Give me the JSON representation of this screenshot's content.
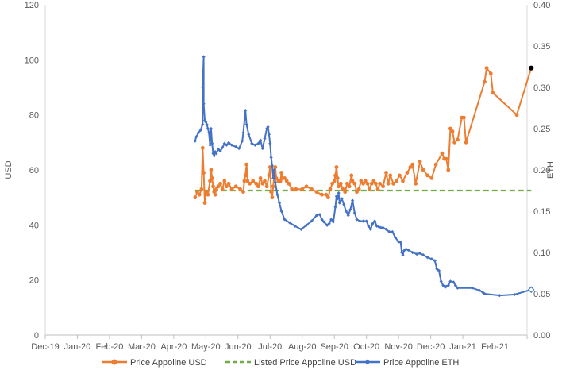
{
  "chart_data": {
    "type": "line",
    "xlabel": "",
    "ylabel_left": "USD",
    "ylabel_right": "ETH",
    "x_ticks": [
      "Dec-19",
      "Jan-20",
      "Feb-20",
      "Mar-20",
      "Apr-20",
      "May-20",
      "Jun-20",
      "Jul-20",
      "Aug-20",
      "Sep-20",
      "Oct-20",
      "Nov-20",
      "Dec-20",
      "Jan-21",
      "Feb-21"
    ],
    "ylim_left": [
      0,
      120
    ],
    "y_ticks_left": [
      0,
      20,
      40,
      60,
      80,
      100,
      120
    ],
    "ylim_right": [
      0,
      0.4
    ],
    "y_ticks_right": [
      "0.00",
      "0.05",
      "0.10",
      "0.15",
      "0.20",
      "0.25",
      "0.30",
      "0.35",
      "0.40"
    ],
    "grid": false,
    "legend_position": "bottom",
    "series": [
      {
        "name": "Price Appoline USD",
        "axis": "left",
        "color": "#ED7D31",
        "style": "solid-with-dots",
        "points": [
          [
            "2020-04-21",
            50
          ],
          [
            "2020-04-23",
            52
          ],
          [
            "2020-04-25",
            51
          ],
          [
            "2020-04-27",
            53
          ],
          [
            "2020-04-28",
            68
          ],
          [
            "2020-04-29",
            59
          ],
          [
            "2020-04-30",
            48
          ],
          [
            "2020-05-01",
            52
          ],
          [
            "2020-05-03",
            51
          ],
          [
            "2020-05-05",
            56
          ],
          [
            "2020-05-06",
            60
          ],
          [
            "2020-05-07",
            57
          ],
          [
            "2020-05-08",
            54
          ],
          [
            "2020-05-09",
            52
          ],
          [
            "2020-05-10",
            51
          ],
          [
            "2020-05-11",
            53
          ],
          [
            "2020-05-13",
            54
          ],
          [
            "2020-05-15",
            55
          ],
          [
            "2020-05-17",
            53
          ],
          [
            "2020-05-19",
            56
          ],
          [
            "2020-05-21",
            54
          ],
          [
            "2020-05-23",
            55
          ],
          [
            "2020-05-26",
            53
          ],
          [
            "2020-05-30",
            54
          ],
          [
            "2020-06-03",
            53
          ],
          [
            "2020-06-06",
            52
          ],
          [
            "2020-06-07",
            56
          ],
          [
            "2020-06-08",
            58
          ],
          [
            "2020-06-09",
            62
          ],
          [
            "2020-06-10",
            56
          ],
          [
            "2020-06-12",
            55
          ],
          [
            "2020-06-15",
            56
          ],
          [
            "2020-06-18",
            55
          ],
          [
            "2020-06-20",
            54
          ],
          [
            "2020-06-22",
            57
          ],
          [
            "2020-06-24",
            55
          ],
          [
            "2020-06-26",
            56
          ],
          [
            "2020-06-28",
            54
          ],
          [
            "2020-06-30",
            58
          ],
          [
            "2020-07-01",
            61
          ],
          [
            "2020-07-02",
            52
          ],
          [
            "2020-07-03",
            50
          ],
          [
            "2020-07-04",
            54
          ],
          [
            "2020-07-05",
            58
          ],
          [
            "2020-07-06",
            61
          ],
          [
            "2020-07-07",
            57
          ],
          [
            "2020-07-09",
            56
          ],
          [
            "2020-07-11",
            56
          ],
          [
            "2020-07-12",
            59
          ],
          [
            "2020-07-13",
            57
          ],
          [
            "2020-07-15",
            57
          ],
          [
            "2020-07-17",
            56
          ],
          [
            "2020-07-19",
            55
          ],
          [
            "2020-07-22",
            53
          ],
          [
            "2020-07-26",
            53
          ],
          [
            "2020-08-01",
            53
          ],
          [
            "2020-08-05",
            54
          ],
          [
            "2020-08-10",
            53
          ],
          [
            "2020-08-15",
            52
          ],
          [
            "2020-08-20",
            51
          ],
          [
            "2020-08-24",
            51
          ],
          [
            "2020-08-26",
            50
          ],
          [
            "2020-08-28",
            53
          ],
          [
            "2020-08-30",
            55
          ],
          [
            "2020-09-01",
            56
          ],
          [
            "2020-09-02",
            58
          ],
          [
            "2020-09-03",
            61
          ],
          [
            "2020-09-04",
            57
          ],
          [
            "2020-09-05",
            54
          ],
          [
            "2020-09-07",
            55
          ],
          [
            "2020-09-09",
            53
          ],
          [
            "2020-09-11",
            52
          ],
          [
            "2020-09-13",
            55
          ],
          [
            "2020-09-15",
            54
          ],
          [
            "2020-09-17",
            58
          ],
          [
            "2020-09-18",
            56
          ],
          [
            "2020-09-20",
            55
          ],
          [
            "2020-09-22",
            52
          ],
          [
            "2020-09-24",
            53
          ],
          [
            "2020-09-26",
            56
          ],
          [
            "2020-09-28",
            55
          ],
          [
            "2020-09-30",
            56
          ],
          [
            "2020-10-02",
            55
          ],
          [
            "2020-10-04",
            53
          ],
          [
            "2020-10-06",
            55
          ],
          [
            "2020-10-08",
            56
          ],
          [
            "2020-10-10",
            55
          ],
          [
            "2020-10-12",
            53
          ],
          [
            "2020-10-14",
            55
          ],
          [
            "2020-10-17",
            54
          ],
          [
            "2020-10-20",
            59
          ],
          [
            "2020-10-22",
            55
          ],
          [
            "2020-10-24",
            58
          ],
          [
            "2020-10-27",
            55
          ],
          [
            "2020-10-30",
            56
          ],
          [
            "2020-11-02",
            58
          ],
          [
            "2020-11-05",
            56
          ],
          [
            "2020-11-09",
            59
          ],
          [
            "2020-11-12",
            61
          ],
          [
            "2020-11-14",
            62
          ],
          [
            "2020-11-17",
            55
          ],
          [
            "2020-11-21",
            63
          ],
          [
            "2020-11-24",
            60
          ],
          [
            "2020-11-28",
            58
          ],
          [
            "2020-12-02",
            57
          ],
          [
            "2020-12-06",
            62
          ],
          [
            "2020-12-12",
            66
          ],
          [
            "2020-12-14",
            64
          ],
          [
            "2020-12-16",
            64
          ],
          [
            "2020-12-18",
            60
          ],
          [
            "2020-12-20",
            75
          ],
          [
            "2020-12-22",
            74
          ],
          [
            "2020-12-24",
            70
          ],
          [
            "2020-12-27",
            71
          ],
          [
            "2020-12-31",
            79
          ],
          [
            "2021-01-02",
            79
          ],
          [
            "2021-01-04",
            70
          ],
          [
            "2021-01-22",
            92
          ],
          [
            "2021-01-24",
            97
          ],
          [
            "2021-01-28",
            95
          ],
          [
            "2021-01-30",
            88
          ],
          [
            "2021-02-20",
            80
          ],
          [
            "2021-03-05",
            97
          ]
        ]
      },
      {
        "name": "Listed Price Appoline USD",
        "axis": "left",
        "color": "#70AD47",
        "style": "dashed",
        "points": [
          [
            "2020-04-21",
            52.5
          ],
          [
            "2021-03-05",
            52.5
          ]
        ]
      },
      {
        "name": "Price Appoline ETH",
        "axis": "right",
        "color": "#4472C4",
        "style": "solid-with-small-markers",
        "points": [
          [
            "2020-04-21",
            0.235
          ],
          [
            "2020-04-22",
            0.24
          ],
          [
            "2020-04-24",
            0.245
          ],
          [
            "2020-04-26",
            0.248
          ],
          [
            "2020-04-28",
            0.255
          ],
          [
            "2020-04-28",
            0.3
          ],
          [
            "2020-04-29",
            0.337
          ],
          [
            "2020-04-29",
            0.28
          ],
          [
            "2020-04-30",
            0.26
          ],
          [
            "2020-05-01",
            0.258
          ],
          [
            "2020-05-02",
            0.255
          ],
          [
            "2020-05-03",
            0.25
          ],
          [
            "2020-05-04",
            0.245
          ],
          [
            "2020-05-05",
            0.23
          ],
          [
            "2020-05-06",
            0.25
          ],
          [
            "2020-05-07",
            0.232
          ],
          [
            "2020-05-08",
            0.22
          ],
          [
            "2020-05-09",
            0.217
          ],
          [
            "2020-05-10",
            0.222
          ],
          [
            "2020-05-11",
            0.22
          ],
          [
            "2020-05-13",
            0.225
          ],
          [
            "2020-05-15",
            0.223
          ],
          [
            "2020-05-17",
            0.227
          ],
          [
            "2020-05-19",
            0.232
          ],
          [
            "2020-05-21",
            0.23
          ],
          [
            "2020-05-23",
            0.233
          ],
          [
            "2020-05-26",
            0.23
          ],
          [
            "2020-05-30",
            0.228
          ],
          [
            "2020-06-02",
            0.226
          ],
          [
            "2020-06-05",
            0.235
          ],
          [
            "2020-06-06",
            0.245
          ],
          [
            "2020-06-08",
            0.272
          ],
          [
            "2020-06-09",
            0.255
          ],
          [
            "2020-06-11",
            0.243
          ],
          [
            "2020-06-14",
            0.232
          ],
          [
            "2020-06-17",
            0.23
          ],
          [
            "2020-06-20",
            0.232
          ],
          [
            "2020-06-22",
            0.236
          ],
          [
            "2020-06-24",
            0.226
          ],
          [
            "2020-06-26",
            0.238
          ],
          [
            "2020-06-28",
            0.25
          ],
          [
            "2020-06-29",
            0.252
          ],
          [
            "2020-06-30",
            0.243
          ],
          [
            "2020-07-01",
            0.232
          ],
          [
            "2020-07-02",
            0.215
          ],
          [
            "2020-07-03",
            0.205
          ],
          [
            "2020-07-04",
            0.19
          ],
          [
            "2020-07-05",
            0.2
          ],
          [
            "2020-07-06",
            0.185
          ],
          [
            "2020-07-08",
            0.17
          ],
          [
            "2020-07-10",
            0.16
          ],
          [
            "2020-07-12",
            0.15
          ],
          [
            "2020-07-15",
            0.14
          ],
          [
            "2020-07-20",
            0.136
          ],
          [
            "2020-07-25",
            0.132
          ],
          [
            "2020-07-31",
            0.128
          ],
          [
            "2020-08-05",
            0.133
          ],
          [
            "2020-08-10",
            0.138
          ],
          [
            "2020-08-15",
            0.145
          ],
          [
            "2020-08-18",
            0.146
          ],
          [
            "2020-08-20",
            0.14
          ],
          [
            "2020-08-22",
            0.137
          ],
          [
            "2020-08-25",
            0.133
          ],
          [
            "2020-08-27",
            0.135
          ],
          [
            "2020-08-29",
            0.14
          ],
          [
            "2020-08-31",
            0.137
          ],
          [
            "2020-09-02",
            0.155
          ],
          [
            "2020-09-03",
            0.168
          ],
          [
            "2020-09-04",
            0.165
          ],
          [
            "2020-09-05",
            0.172
          ],
          [
            "2020-09-06",
            0.16
          ],
          [
            "2020-09-08",
            0.165
          ],
          [
            "2020-09-10",
            0.158
          ],
          [
            "2020-09-12",
            0.15
          ],
          [
            "2020-09-14",
            0.145
          ],
          [
            "2020-09-16",
            0.152
          ],
          [
            "2020-09-18",
            0.163
          ],
          [
            "2020-09-20",
            0.148
          ],
          [
            "2020-09-22",
            0.14
          ],
          [
            "2020-09-25",
            0.138
          ],
          [
            "2020-09-28",
            0.138
          ],
          [
            "2020-10-01",
            0.138
          ],
          [
            "2020-10-03",
            0.132
          ],
          [
            "2020-10-05",
            0.128
          ],
          [
            "2020-10-07",
            0.135
          ],
          [
            "2020-10-09",
            0.138
          ],
          [
            "2020-10-11",
            0.132
          ],
          [
            "2020-10-13",
            0.131
          ],
          [
            "2020-10-15",
            0.13
          ],
          [
            "2020-10-17",
            0.13
          ],
          [
            "2020-10-20",
            0.128
          ],
          [
            "2020-10-23",
            0.125
          ],
          [
            "2020-10-26",
            0.125
          ],
          [
            "2020-10-29",
            0.118
          ],
          [
            "2020-11-01",
            0.113
          ],
          [
            "2020-11-03",
            0.112
          ],
          [
            "2020-11-04",
            0.1
          ],
          [
            "2020-11-05",
            0.097
          ],
          [
            "2020-11-06",
            0.102
          ],
          [
            "2020-11-08",
            0.104
          ],
          [
            "2020-11-10",
            0.103
          ],
          [
            "2020-11-14",
            0.1
          ],
          [
            "2020-11-18",
            0.098
          ],
          [
            "2020-11-21",
            0.099
          ],
          [
            "2020-11-24",
            0.097
          ],
          [
            "2020-11-28",
            0.094
          ],
          [
            "2020-12-02",
            0.092
          ],
          [
            "2020-12-05",
            0.09
          ],
          [
            "2020-12-07",
            0.08
          ],
          [
            "2020-12-09",
            0.078
          ],
          [
            "2020-12-11",
            0.065
          ],
          [
            "2020-12-13",
            0.06
          ],
          [
            "2020-12-15",
            0.058
          ],
          [
            "2020-12-16",
            0.059
          ],
          [
            "2020-12-18",
            0.06
          ],
          [
            "2020-12-20",
            0.065
          ],
          [
            "2020-12-23",
            0.064
          ],
          [
            "2020-12-25",
            0.06
          ],
          [
            "2020-12-27",
            0.057
          ],
          [
            "2021-01-10",
            0.057
          ],
          [
            "2021-01-17",
            0.054
          ],
          [
            "2021-01-20",
            0.052
          ],
          [
            "2021-01-22",
            0.05
          ],
          [
            "2021-02-05",
            0.048
          ],
          [
            "2021-02-18",
            0.049
          ],
          [
            "2021-03-05",
            0.055
          ]
        ]
      }
    ]
  }
}
